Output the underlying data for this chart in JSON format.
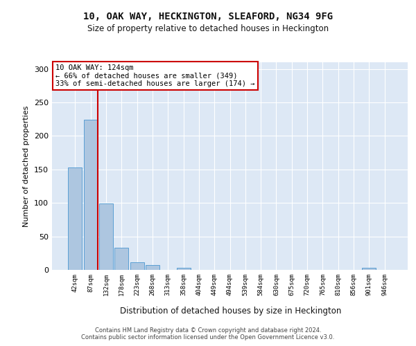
{
  "title1": "10, OAK WAY, HECKINGTON, SLEAFORD, NG34 9FG",
  "title2": "Size of property relative to detached houses in Heckington",
  "xlabel": "Distribution of detached houses by size in Heckington",
  "ylabel": "Number of detached properties",
  "bar_values": [
    153,
    224,
    99,
    33,
    11,
    7,
    0,
    3,
    0,
    0,
    0,
    0,
    0,
    0,
    0,
    0,
    0,
    0,
    0,
    3,
    0
  ],
  "bin_labels": [
    "42sqm",
    "87sqm",
    "132sqm",
    "178sqm",
    "223sqm",
    "268sqm",
    "313sqm",
    "358sqm",
    "404sqm",
    "449sqm",
    "494sqm",
    "539sqm",
    "584sqm",
    "630sqm",
    "675sqm",
    "720sqm",
    "765sqm",
    "810sqm",
    "856sqm",
    "901sqm",
    "946sqm"
  ],
  "bar_color": "#adc6e0",
  "bar_edge_color": "#5a9fd4",
  "vline_color": "#cc0000",
  "vline_x": 2,
  "annotation_text": "10 OAK WAY: 124sqm\n← 66% of detached houses are smaller (349)\n33% of semi-detached houses are larger (174) →",
  "annotation_box_color": "#ffffff",
  "annotation_border_color": "#cc0000",
  "ylim": [
    0,
    310
  ],
  "yticks": [
    0,
    50,
    100,
    150,
    200,
    250,
    300
  ],
  "footer1": "Contains HM Land Registry data © Crown copyright and database right 2024.",
  "footer2": "Contains public sector information licensed under the Open Government Licence v3.0.",
  "bg_color": "#ffffff",
  "plot_bg_color": "#dde8f5"
}
